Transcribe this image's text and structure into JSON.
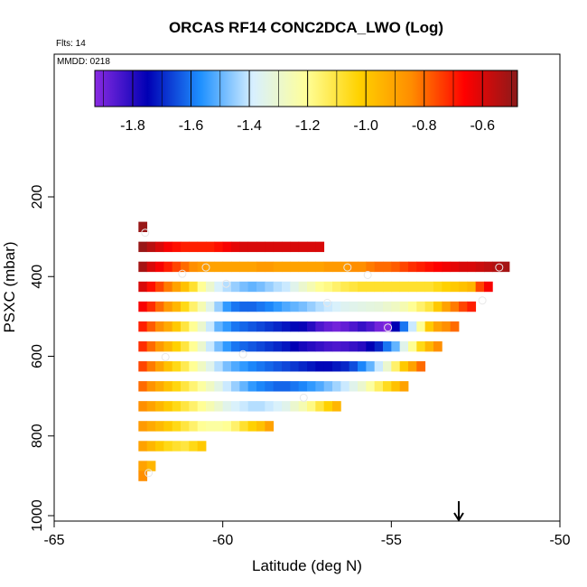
{
  "chart_data": {
    "type": "heatmap",
    "title": "ORCAS RF14 CONC2DCA_LWO (Log)",
    "flights_label": "Flts: 14",
    "mmdd_label": "MMDD: 0218",
    "xlabel": "Latitude (deg N)",
    "ylabel": "PSXC (mbar)",
    "xlim": [
      -65,
      -50
    ],
    "ylim": [
      1000,
      0
    ],
    "x_ticks": [
      -65,
      -60,
      -55,
      -50
    ],
    "x_tick_labels": [
      "-65",
      "-60",
      "-55",
      "-50"
    ],
    "y_ticks": [
      200,
      400,
      600,
      800,
      1000
    ],
    "y_tick_labels": [
      "200",
      "400",
      "600",
      "800",
      "1000"
    ],
    "colorbar": {
      "range": [
        -1.93,
        -0.48
      ],
      "ticks": [
        -1.8,
        -1.6,
        -1.4,
        -1.2,
        -1.0,
        -0.8,
        -0.6
      ],
      "tick_labels": [
        "-1.8",
        "-1.6",
        "-1.4",
        "-1.2",
        "-1.0",
        "-0.8",
        "-0.6"
      ],
      "colors": [
        "#8a2be2",
        "#0000b4",
        "#1e90ff",
        "#d8f0ff",
        "#ffff99",
        "#ffd200",
        "#ff8c00",
        "#ff0000",
        "#8b1a1a"
      ]
    },
    "cell_width_deg": 0.25,
    "cell_height_mbar": 25,
    "rows": [
      {
        "p": 275,
        "x0": -62.5,
        "x1": -62.25,
        "v": [
          -0.5
        ]
      },
      {
        "p": 325,
        "x0": -62.5,
        "x1": -57.0,
        "v": [
          -0.5,
          -0.55,
          -0.6,
          -0.65,
          -0.68,
          -0.7,
          -0.7,
          -0.7,
          -0.7,
          -0.68,
          -0.65,
          -0.62,
          -0.6,
          -0.6,
          -0.6,
          -0.6,
          -0.6,
          -0.6,
          -0.6,
          -0.6,
          -0.6,
          -0.6
        ]
      },
      {
        "p": 375,
        "x0": -62.5,
        "x1": -51.5,
        "v": [
          -0.52,
          -0.6,
          -0.65,
          -0.7,
          -0.75,
          -0.8,
          -0.85,
          -0.88,
          -0.9,
          -0.9,
          -0.9,
          -0.9,
          -0.9,
          -0.9,
          -0.88,
          -0.88,
          -0.9,
          -0.9,
          -0.9,
          -0.9,
          -0.9,
          -0.9,
          -0.88,
          -0.88,
          -0.88,
          -0.85,
          -0.85,
          -0.82,
          -0.8,
          -0.8,
          -0.78,
          -0.75,
          -0.72,
          -0.7,
          -0.68,
          -0.66,
          -0.64,
          -0.62,
          -0.6,
          -0.6,
          -0.58,
          -0.56,
          -0.54,
          -0.52
        ]
      },
      {
        "p": 425,
        "x0": -62.5,
        "x1": -52.0,
        "v": [
          -0.6,
          -0.68,
          -0.75,
          -0.82,
          -0.9,
          -0.98,
          -1.08,
          -1.2,
          -1.3,
          -1.38,
          -1.42,
          -1.45,
          -1.48,
          -1.5,
          -1.48,
          -1.45,
          -1.42,
          -1.4,
          -1.35,
          -1.3,
          -1.25,
          -1.2,
          -1.18,
          -1.15,
          -1.12,
          -1.1,
          -1.08,
          -1.08,
          -1.08,
          -1.08,
          -1.08,
          -1.08,
          -1.08,
          -1.08,
          -1.08,
          -1.05,
          -1.02,
          -1.0,
          -0.98,
          -0.95,
          -0.75,
          -0.65
        ]
      },
      {
        "p": 475,
        "x0": -62.5,
        "x1": -52.5,
        "v": [
          -0.65,
          -0.72,
          -0.8,
          -0.88,
          -0.95,
          -1.05,
          -1.15,
          -1.25,
          -1.35,
          -1.45,
          -1.55,
          -1.6,
          -1.62,
          -1.62,
          -1.6,
          -1.58,
          -1.55,
          -1.52,
          -1.5,
          -1.48,
          -1.45,
          -1.42,
          -1.4,
          -1.38,
          -1.36,
          -1.35,
          -1.34,
          -1.33,
          -1.32,
          -1.3,
          -1.28,
          -1.25,
          -1.2,
          -1.15,
          -1.1,
          -1.0,
          -0.9,
          -0.82,
          -0.75,
          -0.7
        ]
      },
      {
        "p": 525,
        "x0": -62.5,
        "x1": -53.0,
        "v": [
          -0.7,
          -0.78,
          -0.85,
          -0.92,
          -1.0,
          -1.1,
          -1.2,
          -1.3,
          -1.4,
          -1.5,
          -1.55,
          -1.6,
          -1.62,
          -1.64,
          -1.66,
          -1.68,
          -1.7,
          -1.72,
          -1.74,
          -1.76,
          -1.8,
          -1.85,
          -1.88,
          -1.9,
          -1.88,
          -1.85,
          -1.82,
          -1.85,
          -1.9,
          -1.92,
          -1.75,
          -1.6,
          -1.4,
          -1.2,
          -1.0,
          -0.9,
          -0.85,
          -0.8
        ]
      },
      {
        "p": 575,
        "x0": -62.5,
        "x1": -53.5,
        "v": [
          -0.72,
          -0.8,
          -0.88,
          -0.95,
          -1.02,
          -1.1,
          -1.2,
          -1.3,
          -1.4,
          -1.48,
          -1.55,
          -1.6,
          -1.62,
          -1.64,
          -1.66,
          -1.68,
          -1.7,
          -1.72,
          -1.75,
          -1.78,
          -1.8,
          -1.82,
          -1.84,
          -1.85,
          -1.84,
          -1.82,
          -1.8,
          -1.75,
          -1.7,
          -1.6,
          -1.5,
          -1.35,
          -1.2,
          -1.05,
          -0.95,
          -0.85
        ]
      },
      {
        "p": 625,
        "x0": -62.5,
        "x1": -54.0,
        "v": [
          -0.75,
          -0.82,
          -0.9,
          -0.98,
          -1.05,
          -1.12,
          -1.2,
          -1.28,
          -1.35,
          -1.42,
          -1.48,
          -1.52,
          -1.55,
          -1.58,
          -1.6,
          -1.62,
          -1.64,
          -1.66,
          -1.68,
          -1.7,
          -1.72,
          -1.74,
          -1.74,
          -1.72,
          -1.7,
          -1.65,
          -1.58,
          -1.5,
          -1.4,
          -1.3,
          -1.15,
          -1.0,
          -0.9,
          -0.8
        ]
      },
      {
        "p": 675,
        "x0": -62.5,
        "x1": -54.5,
        "v": [
          -0.8,
          -0.86,
          -0.92,
          -0.98,
          -1.04,
          -1.1,
          -1.16,
          -1.22,
          -1.28,
          -1.34,
          -1.4,
          -1.45,
          -1.5,
          -1.55,
          -1.58,
          -1.6,
          -1.62,
          -1.62,
          -1.6,
          -1.58,
          -1.55,
          -1.52,
          -1.48,
          -1.44,
          -1.4,
          -1.35,
          -1.3,
          -1.22,
          -1.14,
          -1.06,
          -0.98,
          -0.9
        ]
      },
      {
        "p": 725,
        "x0": -62.5,
        "x1": -56.5,
        "v": [
          -0.85,
          -0.9,
          -0.95,
          -1.0,
          -1.05,
          -1.1,
          -1.15,
          -1.2,
          -1.25,
          -1.3,
          -1.35,
          -1.38,
          -1.4,
          -1.42,
          -1.42,
          -1.4,
          -1.38,
          -1.35,
          -1.3,
          -1.25,
          -1.18,
          -1.1,
          -1.02,
          -0.95
        ]
      },
      {
        "p": 775,
        "x0": -62.5,
        "x1": -58.5,
        "v": [
          -0.88,
          -0.92,
          -0.96,
          -1.0,
          -1.05,
          -1.1,
          -1.15,
          -1.2,
          -1.22,
          -1.22,
          -1.2,
          -1.15,
          -1.08,
          -1.02,
          -0.98,
          -0.9
        ]
      },
      {
        "p": 825,
        "x0": -62.5,
        "x1": -60.5,
        "v": [
          -0.9,
          -0.95,
          -1.0,
          -1.05,
          -1.08,
          -1.1,
          -1.05,
          -1.0
        ]
      },
      {
        "p": 875,
        "x0": -62.5,
        "x1": -62.0,
        "v": [
          -0.9,
          -0.95
        ]
      },
      {
        "p": 900,
        "x0": -62.5,
        "x1": -62.25,
        "v": [
          -0.85
        ]
      }
    ],
    "markers": [
      {
        "x": -62.3,
        "y": 290
      },
      {
        "x": -61.2,
        "y": 393
      },
      {
        "x": -60.5,
        "y": 377
      },
      {
        "x": -59.9,
        "y": 418
      },
      {
        "x": -56.9,
        "y": 466
      },
      {
        "x": -56.3,
        "y": 377
      },
      {
        "x": -55.7,
        "y": 396
      },
      {
        "x": -55.1,
        "y": 528
      },
      {
        "x": -52.3,
        "y": 460
      },
      {
        "x": -51.8,
        "y": 377
      },
      {
        "x": -61.7,
        "y": 602
      },
      {
        "x": -59.4,
        "y": 595
      },
      {
        "x": -57.6,
        "y": 704
      },
      {
        "x": -62.2,
        "y": 893
      }
    ],
    "arrow_marker": {
      "x": -53.0
    }
  }
}
